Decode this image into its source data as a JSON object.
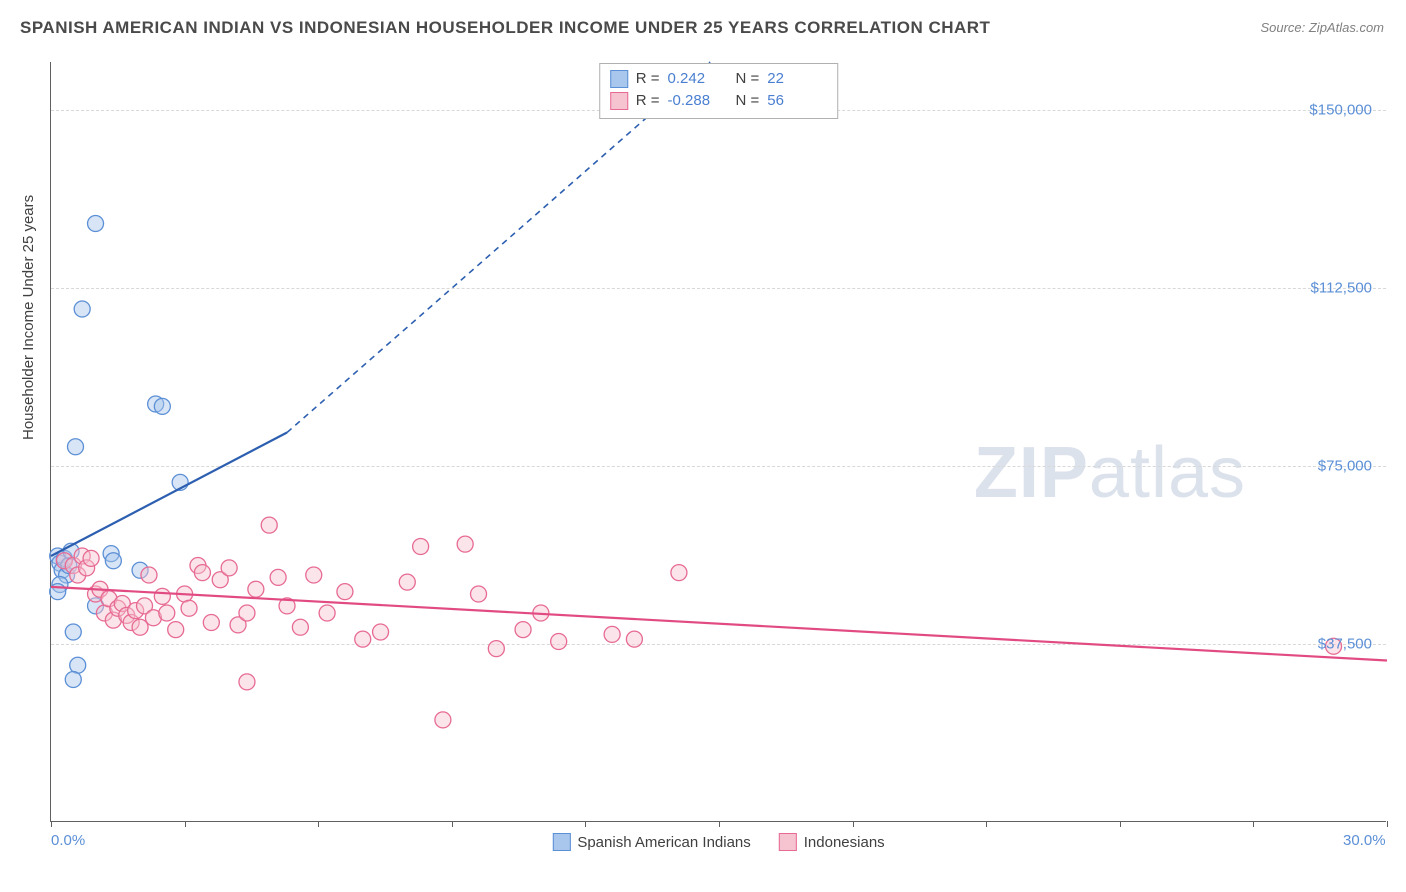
{
  "title": "SPANISH AMERICAN INDIAN VS INDONESIAN HOUSEHOLDER INCOME UNDER 25 YEARS CORRELATION CHART",
  "source": "Source: ZipAtlas.com",
  "watermark": {
    "bold": "ZIP",
    "rest": "atlas"
  },
  "ylabel": "Householder Income Under 25 years",
  "chart": {
    "type": "scatter",
    "xlim": [
      0,
      30
    ],
    "ylim": [
      0,
      160000
    ],
    "x_tick_positions": [
      0,
      3,
      6,
      9,
      12,
      15,
      18,
      21,
      24,
      27,
      30
    ],
    "x_labeled_ticks": {
      "0": "0.0%",
      "30": "30.0%"
    },
    "y_gridlines": [
      37500,
      75000,
      112500,
      150000
    ],
    "y_labels": [
      "$37,500",
      "$75,000",
      "$112,500",
      "$150,000"
    ],
    "background_color": "#ffffff",
    "grid_color": "#d8d8d8",
    "axis_color": "#606060",
    "tick_label_color": "#5b8fd6",
    "axis_label_color": "#404040",
    "marker_radius": 8,
    "marker_opacity": 0.45,
    "series": [
      {
        "name": "Spanish American Indians",
        "fill": "#a9c6ec",
        "stroke": "#5b8fd6",
        "line_color": "#2d5fb0",
        "R": "0.242",
        "N": "22",
        "trend": {
          "x1": 0,
          "y1": 56000,
          "x2": 5.3,
          "y2": 82000,
          "dash_to_x": 14.8,
          "dash_to_y": 160000
        },
        "points": [
          [
            0.15,
            56000
          ],
          [
            0.2,
            54500
          ],
          [
            0.25,
            53000
          ],
          [
            0.3,
            55500
          ],
          [
            0.35,
            52000
          ],
          [
            0.4,
            54000
          ],
          [
            0.45,
            57000
          ],
          [
            0.2,
            50000
          ],
          [
            0.15,
            48500
          ],
          [
            0.5,
            40000
          ],
          [
            0.6,
            33000
          ],
          [
            0.5,
            30000
          ],
          [
            0.55,
            79000
          ],
          [
            0.7,
            108000
          ],
          [
            1.0,
            126000
          ],
          [
            1.35,
            56500
          ],
          [
            1.4,
            55000
          ],
          [
            2.0,
            53000
          ],
          [
            2.35,
            88000
          ],
          [
            2.5,
            87500
          ],
          [
            2.9,
            71500
          ],
          [
            1.0,
            45500
          ]
        ]
      },
      {
        "name": "Indonesians",
        "fill": "#f6c3d1",
        "stroke": "#e76a93",
        "line_color": "#e14b82",
        "R": "-0.288",
        "N": "56",
        "trend": {
          "x1": 0,
          "y1": 49500,
          "x2": 30,
          "y2": 34000
        },
        "points": [
          [
            0.3,
            55000
          ],
          [
            0.5,
            54000
          ],
          [
            0.6,
            52000
          ],
          [
            0.7,
            56000
          ],
          [
            0.8,
            53500
          ],
          [
            0.9,
            55500
          ],
          [
            1.0,
            48000
          ],
          [
            1.1,
            49000
          ],
          [
            1.2,
            44000
          ],
          [
            1.3,
            47000
          ],
          [
            1.4,
            42500
          ],
          [
            1.5,
            45000
          ],
          [
            1.6,
            46000
          ],
          [
            1.7,
            43500
          ],
          [
            1.8,
            42000
          ],
          [
            1.9,
            44500
          ],
          [
            2.0,
            41000
          ],
          [
            2.1,
            45500
          ],
          [
            2.2,
            52000
          ],
          [
            2.3,
            43000
          ],
          [
            2.5,
            47500
          ],
          [
            2.6,
            44000
          ],
          [
            2.8,
            40500
          ],
          [
            3.0,
            48000
          ],
          [
            3.1,
            45000
          ],
          [
            3.3,
            54000
          ],
          [
            3.4,
            52500
          ],
          [
            3.6,
            42000
          ],
          [
            3.8,
            51000
          ],
          [
            4.0,
            53500
          ],
          [
            4.2,
            41500
          ],
          [
            4.4,
            44000
          ],
          [
            4.6,
            49000
          ],
          [
            4.9,
            62500
          ],
          [
            5.1,
            51500
          ],
          [
            5.3,
            45500
          ],
          [
            5.6,
            41000
          ],
          [
            5.9,
            52000
          ],
          [
            6.2,
            44000
          ],
          [
            6.6,
            48500
          ],
          [
            7.0,
            38500
          ],
          [
            7.4,
            40000
          ],
          [
            8.0,
            50500
          ],
          [
            8.3,
            58000
          ],
          [
            8.8,
            21500
          ],
          [
            9.3,
            58500
          ],
          [
            9.6,
            48000
          ],
          [
            10.0,
            36500
          ],
          [
            10.6,
            40500
          ],
          [
            11.0,
            44000
          ],
          [
            11.4,
            38000
          ],
          [
            12.6,
            39500
          ],
          [
            13.1,
            38500
          ],
          [
            14.1,
            52500
          ],
          [
            4.4,
            29500
          ],
          [
            28.8,
            37000
          ]
        ]
      }
    ]
  },
  "legend": {
    "items": [
      {
        "label": "Spanish American Indians",
        "fill": "#a9c6ec",
        "stroke": "#5b8fd6"
      },
      {
        "label": "Indonesians",
        "fill": "#f6c3d1",
        "stroke": "#e76a93"
      }
    ]
  },
  "stats_labels": {
    "R": "R =",
    "N": "N ="
  }
}
